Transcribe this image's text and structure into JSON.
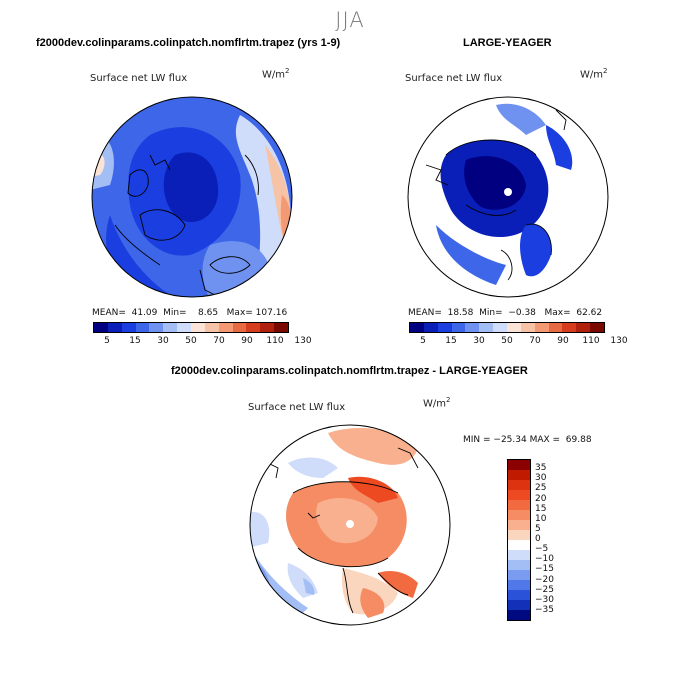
{
  "figure": {
    "season": "JJA"
  },
  "chart_data": [
    {
      "type": "heatmap",
      "panel": "top-left",
      "title": "f2000dev.colinparams.colinpatch.nomflrtm.trapez (yrs 1-9)",
      "field_label": "Surface net LW flux",
      "units_base": "W/m",
      "units_exp": "2",
      "projection": "north polar stereographic",
      "stats": {
        "mean": "41.09",
        "min": "8.65",
        "max": "107.16"
      },
      "stats_text": "MEAN=  41.09  Min=    8.65   Max= 107.16",
      "colorbar": {
        "levels": [
          "5",
          "15",
          "30",
          "50",
          "70",
          "90",
          "110",
          "130"
        ],
        "colors": [
          "#000080",
          "#0a1fb8",
          "#1a3ee0",
          "#3d66e8",
          "#6f92f0",
          "#a3bdf5",
          "#cfdcfa",
          "#fbe4d6",
          "#f7c3a6",
          "#f39a74",
          "#e86a43",
          "#d63d1f",
          "#b0210e",
          "#7a0a00"
        ]
      }
    },
    {
      "type": "heatmap",
      "panel": "top-right",
      "title": "LARGE-YEAGER",
      "field_label": "Surface net LW flux",
      "units_base": "W/m",
      "units_exp": "2",
      "projection": "north polar stereographic",
      "stats": {
        "mean": "18.58",
        "min": "−0.38",
        "max": "62.62"
      },
      "stats_text": "MEAN=  18.58  Min=  −0.38   Max=  62.62",
      "colorbar": {
        "levels": [
          "5",
          "15",
          "30",
          "50",
          "70",
          "90",
          "110",
          "130"
        ],
        "colors": [
          "#000080",
          "#0a1fb8",
          "#1a3ee0",
          "#3d66e8",
          "#6f92f0",
          "#a3bdf5",
          "#cfdcfa",
          "#fbe4d6",
          "#f7c3a6",
          "#f39a74",
          "#e86a43",
          "#d63d1f",
          "#b0210e",
          "#7a0a00"
        ]
      }
    },
    {
      "type": "heatmap",
      "panel": "bottom",
      "title": "f2000dev.colinparams.colinpatch.nomflrtm.trapez - LARGE-YEAGER",
      "field_label": "Surface net LW flux",
      "units_base": "W/m",
      "units_exp": "2",
      "projection": "north polar stereographic",
      "stats": {
        "min": "−25.34",
        "max": "69.88"
      },
      "stats_text": "MIN = −25.34 MAX =  69.88",
      "colorbar": {
        "levels": [
          "35",
          "30",
          "25",
          "20",
          "15",
          "10",
          "5",
          "0",
          "−5",
          "−10",
          "−15",
          "−20",
          "−25",
          "−30",
          "−35"
        ],
        "colors": [
          "#8b0000",
          "#c01a00",
          "#dd3311",
          "#ee4a22",
          "#f26a3f",
          "#f58c63",
          "#f8b08e",
          "#fbd6bf",
          "#ffffff",
          "#cfdcfa",
          "#a3bdf5",
          "#7a9cf0",
          "#5078e8",
          "#2a52d8",
          "#1230b8",
          "#000a80"
        ]
      }
    }
  ]
}
